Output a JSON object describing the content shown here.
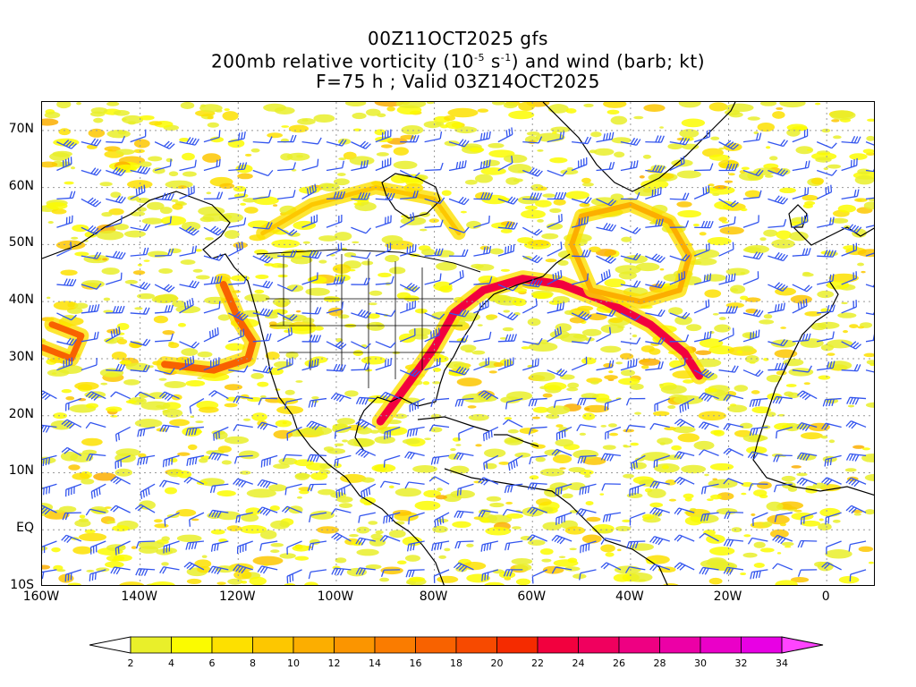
{
  "title": {
    "line1": "00Z11OCT2025 gfs",
    "line2_pre": "200mb relative vorticity (10",
    "line2_exp1": "-5",
    "line2_mid": " s",
    "line2_exp2": "-1",
    "line2_post": ") and wind (barb; kt)",
    "line3": "F=75 h ; Valid 03Z14OCT2025"
  },
  "map": {
    "lon_range": [
      -160,
      10
    ],
    "lat_range": [
      -10,
      75
    ],
    "lat_labels": [
      {
        "lat": 70,
        "text": "70N"
      },
      {
        "lat": 60,
        "text": "60N"
      },
      {
        "lat": 50,
        "text": "50N"
      },
      {
        "lat": 40,
        "text": "40N"
      },
      {
        "lat": 30,
        "text": "30N"
      },
      {
        "lat": 20,
        "text": "20N"
      },
      {
        "lat": 10,
        "text": "10N"
      },
      {
        "lat": 0,
        "text": "EQ"
      },
      {
        "lat": -10,
        "text": "10S"
      }
    ],
    "lon_labels": [
      {
        "lon": -160,
        "text": "160W"
      },
      {
        "lon": -140,
        "text": "140W"
      },
      {
        "lon": -120,
        "text": "120W"
      },
      {
        "lon": -100,
        "text": "100W"
      },
      {
        "lon": -80,
        "text": "80W"
      },
      {
        "lon": -60,
        "text": "60W"
      },
      {
        "lon": -40,
        "text": "40W"
      },
      {
        "lon": -20,
        "text": "20W"
      },
      {
        "lon": 0,
        "text": "0"
      }
    ],
    "colors": {
      "barb": "#3355ee",
      "coast": "#000000",
      "grid": "#999999"
    }
  },
  "colorbar": {
    "levels": [
      2,
      4,
      6,
      8,
      10,
      12,
      14,
      16,
      18,
      20,
      22,
      24,
      26,
      28,
      30,
      32,
      34
    ],
    "colors": [
      "#e9ef2a",
      "#fbfb00",
      "#fde000",
      "#fdc700",
      "#fcae00",
      "#fb9500",
      "#fa7c00",
      "#f86200",
      "#f74a00",
      "#f52b00",
      "#f2003e",
      "#f0005e",
      "#ee0082",
      "#ec00a6",
      "#ea00c8",
      "#e800e4"
    ],
    "under_color": "#ffffff",
    "over_color": "#ff44ff"
  }
}
